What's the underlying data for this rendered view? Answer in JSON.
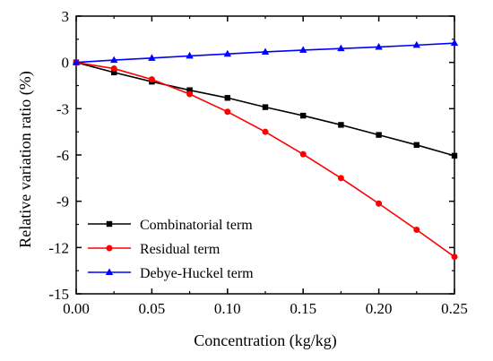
{
  "chart_data": {
    "type": "line",
    "xlabel": "Concentration (kg/kg)",
    "ylabel": "Relative variation ratio (%)",
    "xlim": [
      0,
      0.25
    ],
    "ylim": [
      -15,
      3
    ],
    "x_ticks": [
      "0.00",
      "0.05",
      "0.10",
      "0.15",
      "0.20",
      "0.25"
    ],
    "y_ticks": [
      "3",
      "0",
      "-3",
      "-6",
      "-9",
      "-12",
      "-15"
    ],
    "grid": false,
    "legend_position": "bottom-left",
    "x": [
      0,
      0.025,
      0.05,
      0.075,
      0.1,
      0.125,
      0.15,
      0.175,
      0.2,
      0.225,
      0.25
    ],
    "series": [
      {
        "name": "Combinatorial term",
        "color": "#000000",
        "marker": "square",
        "values": [
          0,
          -0.65,
          -1.25,
          -1.8,
          -2.3,
          -2.9,
          -3.45,
          -4.05,
          -4.7,
          -5.35,
          -6.05
        ]
      },
      {
        "name": "Residual term",
        "color": "#ff0000",
        "marker": "circle",
        "values": [
          0,
          -0.4,
          -1.1,
          -2.05,
          -3.2,
          -4.5,
          -5.95,
          -7.5,
          -9.15,
          -10.85,
          -12.6
        ]
      },
      {
        "name": "Debye-Huckel term",
        "color": "#0000ff",
        "marker": "triangle",
        "values": [
          0,
          0.15,
          0.28,
          0.42,
          0.55,
          0.68,
          0.8,
          0.9,
          1.0,
          1.12,
          1.25
        ]
      }
    ]
  }
}
